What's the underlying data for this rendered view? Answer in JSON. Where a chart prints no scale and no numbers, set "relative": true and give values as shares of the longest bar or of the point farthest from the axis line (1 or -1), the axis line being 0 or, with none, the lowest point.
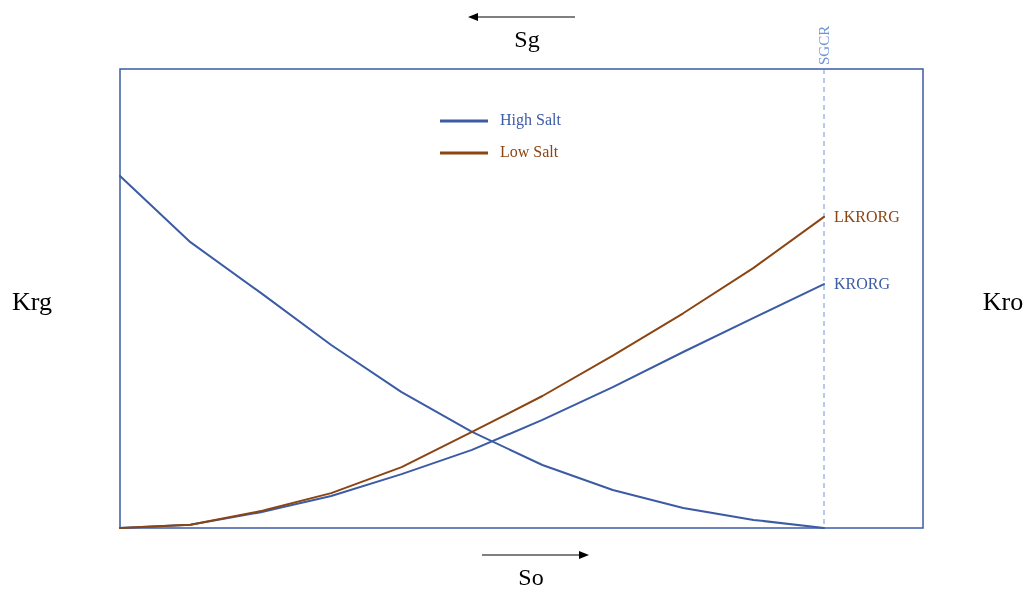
{
  "chart_data": {
    "type": "line",
    "relative": true,
    "xlabel": "So",
    "x2label": "Sg",
    "ylabel": "Krg",
    "y2label": "Kro",
    "legend": "top",
    "marker": "none",
    "line_style": "solid",
    "categories": [
      null,
      null,
      null,
      null,
      null,
      null,
      null,
      null,
      null,
      null,
      null
    ],
    "series": [
      {
        "color": "#3b5ba5",
        "values": [
          1.0,
          0.812,
          0.668,
          0.52,
          0.386,
          0.273,
          0.179,
          0.108,
          0.057,
          0.023,
          0
        ]
      },
      {
        "name": "High Salt",
        "color": "#3b5ba5",
        "values": [
          0,
          0.009,
          0.045,
          0.091,
          0.153,
          0.222,
          0.307,
          0.4,
          0.5,
          0.597,
          0.693
        ]
      },
      {
        "name": "Low Salt",
        "color": "#8b4513",
        "values": [
          0,
          0.009,
          0.048,
          0.099,
          0.173,
          0.273,
          0.375,
          0.49,
          0.61,
          0.739,
          0.884
        ]
      }
    ],
    "ref_lines": [
      {
        "axis": "x",
        "label": "SGCR",
        "color": "#6f95d9",
        "line_style": "dashed"
      }
    ],
    "annotations": [
      "LKRORG",
      "KRORG"
    ]
  }
}
